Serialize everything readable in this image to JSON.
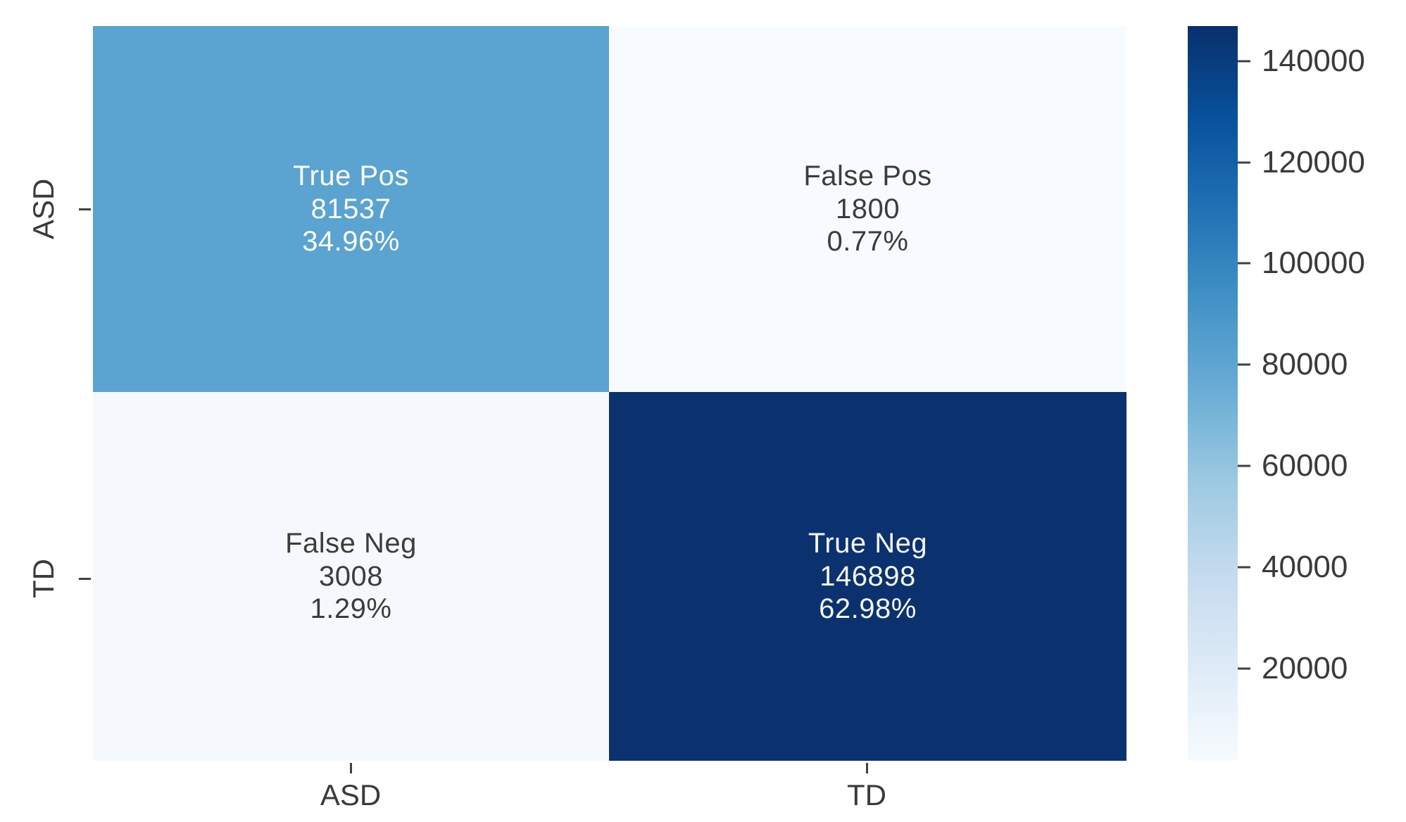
{
  "chart_data": {
    "type": "heatmap",
    "title": "",
    "x_axis": {
      "labels": [
        "ASD",
        "TD"
      ]
    },
    "y_axis": {
      "labels": [
        "ASD",
        "TD"
      ]
    },
    "cells": [
      {
        "row": "ASD",
        "col": "ASD",
        "label": "True Pos",
        "count": "81537",
        "percent": "34.96%",
        "value": 81537,
        "color": "#5ba3d0",
        "text_color": "#fafcfd"
      },
      {
        "row": "ASD",
        "col": "TD",
        "label": "False Pos",
        "count": "1800",
        "percent": "0.77%",
        "value": 1800,
        "color": "#f7fbff",
        "text_color": "#3c3c3c"
      },
      {
        "row": "TD",
        "col": "ASD",
        "label": "False Neg",
        "count": "3008",
        "percent": "1.29%",
        "value": 3008,
        "color": "#f5f9fd",
        "text_color": "#3c3c3c"
      },
      {
        "row": "TD",
        "col": "TD",
        "label": "True Neg",
        "count": "146898",
        "percent": "62.98%",
        "value": 146898,
        "color": "#0b316e",
        "text_color": "#f5f7fa"
      }
    ],
    "colorbar": {
      "vmin": 1800,
      "vmax": 146898,
      "ticks": [
        20000,
        40000,
        60000,
        80000,
        100000,
        120000,
        140000
      ],
      "colormap": "Blues",
      "gradient": [
        "#f7fbff",
        "#deebf7",
        "#c6dbef",
        "#9ecae1",
        "#6baed6",
        "#4292c6",
        "#2171b5",
        "#08519c",
        "#08306b"
      ]
    },
    "legend_position": "right-colorbar",
    "grid": false
  }
}
